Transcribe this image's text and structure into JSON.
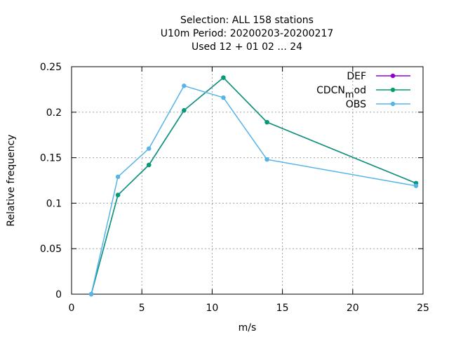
{
  "chart_data": {
    "type": "line",
    "title_lines": [
      "Selection: ALL     158 stations",
      "U10m  Period: 20200203-20200217",
      "Used  12 + 01 02 ... 24"
    ],
    "xlabel": "m/s",
    "ylabel": "Relative frequency",
    "xlim": [
      0,
      25
    ],
    "ylim": [
      0,
      0.25
    ],
    "xticks": [
      0,
      5,
      10,
      15,
      20,
      25
    ],
    "xtick_labels": [
      "0",
      "5",
      "10",
      "15",
      "20",
      "25"
    ],
    "yticks": [
      0,
      0.05,
      0.1,
      0.15,
      0.2,
      0.25
    ],
    "ytick_labels": [
      "0",
      "0.05",
      "0.1",
      "0.15",
      "0.2",
      "0.25"
    ],
    "grid": true,
    "legend_position": "top-right",
    "series": [
      {
        "name": "DEF",
        "color": "#9400d3",
        "x": [
          1.4,
          3.3,
          5.5,
          8.0,
          10.8,
          13.9,
          24.5
        ],
        "y": [
          0.0,
          0.109,
          0.142,
          0.202,
          0.238,
          0.189,
          0.122
        ]
      },
      {
        "name": "CDCN_mod",
        "color": "#009e73",
        "x": [
          1.4,
          3.3,
          5.5,
          8.0,
          10.8,
          13.9,
          24.5
        ],
        "y": [
          0.0,
          0.109,
          0.142,
          0.202,
          0.238,
          0.189,
          0.122
        ]
      },
      {
        "name": "OBS",
        "color": "#56b4e9",
        "x": [
          1.4,
          3.3,
          5.5,
          8.0,
          10.8,
          13.9,
          24.5
        ],
        "y": [
          0.0,
          0.129,
          0.16,
          0.229,
          0.216,
          0.148,
          0.119
        ]
      }
    ],
    "legend_labels": [
      {
        "main": "DEF",
        "sub": ""
      },
      {
        "main": "CDCN",
        "sub": "m",
        "rest": "od"
      },
      {
        "main": "OBS",
        "sub": ""
      }
    ]
  }
}
